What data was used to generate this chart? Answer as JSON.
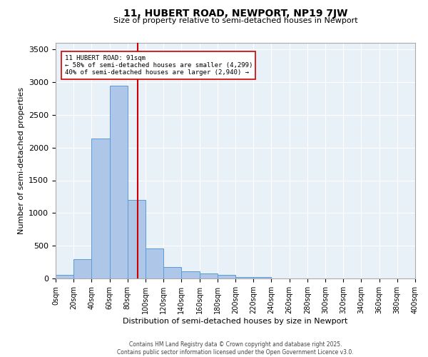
{
  "title": "11, HUBERT ROAD, NEWPORT, NP19 7JW",
  "subtitle": "Size of property relative to semi-detached houses in Newport",
  "xlabel": "Distribution of semi-detached houses by size in Newport",
  "ylabel": "Number of semi-detached properties",
  "bar_values": [
    50,
    290,
    2140,
    2950,
    1200,
    455,
    175,
    110,
    75,
    55,
    25,
    20,
    5,
    0,
    0,
    0,
    0,
    0,
    0,
    0
  ],
  "bin_edges": [
    0,
    20,
    40,
    60,
    80,
    100,
    120,
    140,
    160,
    180,
    200,
    220,
    240,
    260,
    280,
    300,
    320,
    340,
    360,
    380,
    400
  ],
  "bar_color": "#aec6e8",
  "bar_edge_color": "#5b9bd5",
  "vline_x": 91,
  "vline_color": "#cc0000",
  "annotation_text": "11 HUBERT ROAD: 91sqm\n← 58% of semi-detached houses are smaller (4,299)\n40% of semi-detached houses are larger (2,940) →",
  "annotation_box_color": "white",
  "annotation_box_edge": "#cc0000",
  "ylim": [
    0,
    3600
  ],
  "background_color": "#e8f0f8",
  "grid_color": "white",
  "footer_line1": "Contains HM Land Registry data © Crown copyright and database right 2025.",
  "footer_line2": "Contains public sector information licensed under the Open Government Licence v3.0.",
  "tick_labels": [
    "0sqm",
    "20sqm",
    "40sqm",
    "60sqm",
    "80sqm",
    "100sqm",
    "120sqm",
    "140sqm",
    "160sqm",
    "180sqm",
    "200sqm",
    "220sqm",
    "240sqm",
    "260sqm",
    "280sqm",
    "300sqm",
    "320sqm",
    "340sqm",
    "360sqm",
    "380sqm",
    "400sqm"
  ]
}
